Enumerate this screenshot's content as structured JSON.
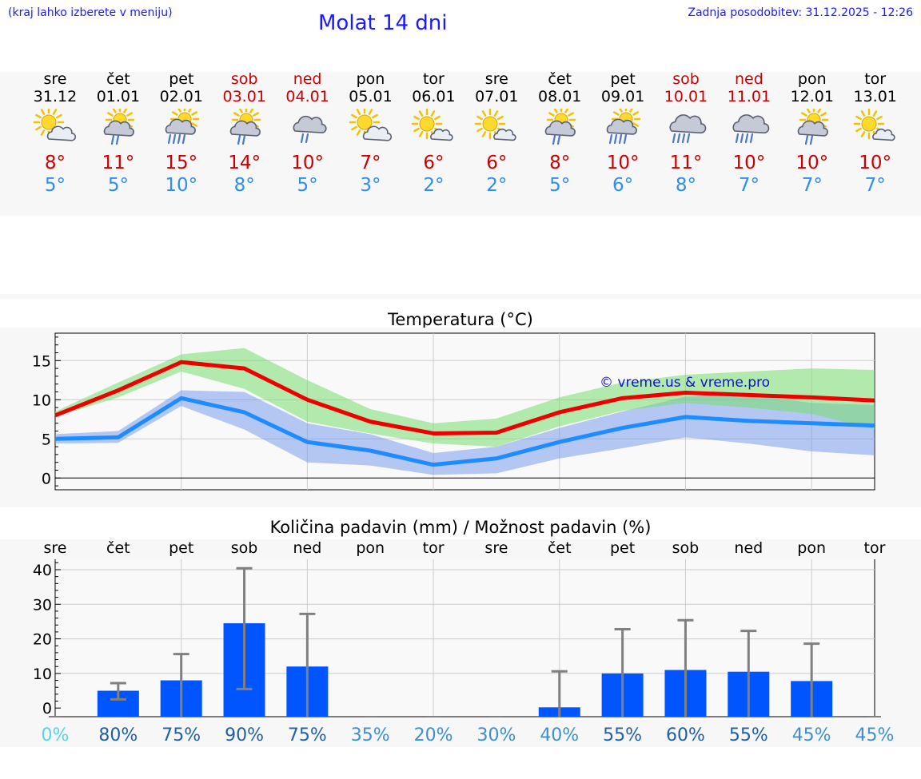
{
  "header": {
    "hint": "(kraj lahko izberete v meniju)",
    "title": "Molat 14 dni",
    "updated": "Zadnja posodobitev: 31.12.2025 - 12:26"
  },
  "colors": {
    "link": "#1a1aff",
    "max": "#cc0000",
    "min": "#2a8ff0",
    "weekend": "#cc0000",
    "bar": "#0055ff",
    "errorbar": "#808080"
  },
  "days": [
    {
      "name": "sre",
      "date": "31.12",
      "weekend": false,
      "icon": "sun-cloud-icon",
      "max": "8°",
      "min": "5°"
    },
    {
      "name": "čet",
      "date": "01.01",
      "weekend": false,
      "icon": "sun-cloud-rain-icon",
      "max": "11°",
      "min": "5°"
    },
    {
      "name": "pet",
      "date": "02.01",
      "weekend": false,
      "icon": "sun-cloud-heavy-rain-icon",
      "max": "15°",
      "min": "10°"
    },
    {
      "name": "sob",
      "date": "03.01",
      "weekend": true,
      "icon": "sun-cloud-rain-icon",
      "max": "14°",
      "min": "8°"
    },
    {
      "name": "ned",
      "date": "04.01",
      "weekend": true,
      "icon": "cloud-rain-icon",
      "max": "10°",
      "min": "5°"
    },
    {
      "name": "pon",
      "date": "05.01",
      "weekend": false,
      "icon": "sun-cloud-icon",
      "max": "7°",
      "min": "3°"
    },
    {
      "name": "tor",
      "date": "06.01",
      "weekend": false,
      "icon": "sun-small-cloud-icon",
      "max": "6°",
      "min": "2°"
    },
    {
      "name": "sre",
      "date": "07.01",
      "weekend": false,
      "icon": "sun-small-cloud-icon",
      "max": "6°",
      "min": "2°"
    },
    {
      "name": "čet",
      "date": "08.01",
      "weekend": false,
      "icon": "sun-cloud-rain-icon",
      "max": "8°",
      "min": "5°"
    },
    {
      "name": "pet",
      "date": "09.01",
      "weekend": false,
      "icon": "sun-cloud-heavy-rain-icon",
      "max": "10°",
      "min": "6°"
    },
    {
      "name": "sob",
      "date": "10.01",
      "weekend": true,
      "icon": "cloud-heavy-rain-icon",
      "max": "11°",
      "min": "8°"
    },
    {
      "name": "ned",
      "date": "11.01",
      "weekend": true,
      "icon": "cloud-heavy-rain-icon",
      "max": "10°",
      "min": "7°"
    },
    {
      "name": "pon",
      "date": "12.01",
      "weekend": false,
      "icon": "sun-cloud-rain-icon",
      "max": "10°",
      "min": "7°"
    },
    {
      "name": "tor",
      "date": "13.01",
      "weekend": false,
      "icon": "sun-small-cloud-icon",
      "max": "10°",
      "min": "7°"
    }
  ],
  "chart_data": [
    {
      "type": "line",
      "title": "Temperatura (°C)",
      "xlabel": "",
      "ylabel": "",
      "ylim": [
        -1.5,
        18.5
      ],
      "yticks": [
        0,
        5,
        10,
        15
      ],
      "watermark": "© vreme.us & vreme.pro",
      "x": [
        0,
        1,
        2,
        3,
        4,
        5,
        6,
        7,
        8,
        9,
        10,
        11,
        12,
        13
      ],
      "series": [
        {
          "name": "max",
          "color": "#ee0000",
          "values": [
            8,
            11.2,
            14.8,
            14,
            10,
            7.2,
            5.7,
            5.8,
            8.4,
            10.2,
            10.9,
            10.6,
            10.3,
            9.9
          ],
          "band_upper": [
            8.5,
            12.2,
            15.8,
            16.6,
            12.5,
            8.8,
            7.0,
            7.6,
            10.3,
            12.2,
            13.2,
            13.6,
            14.0,
            13.8
          ],
          "band_lower": [
            7.8,
            10.3,
            13.6,
            11.4,
            7.2,
            5.7,
            4.4,
            4.0,
            6.6,
            8.6,
            9.6,
            9.0,
            8.2,
            6.2
          ]
        },
        {
          "name": "min",
          "color": "#1e8cff",
          "values": [
            5,
            5.2,
            10.2,
            8.4,
            4.6,
            3.5,
            1.7,
            2.5,
            4.6,
            6.4,
            7.8,
            7.3,
            7.0,
            6.7
          ],
          "band_upper": [
            5.6,
            6.0,
            11.2,
            11.0,
            7.0,
            5.6,
            3.2,
            4.0,
            6.4,
            8.5,
            10.4,
            10.6,
            9.6,
            9.3
          ],
          "band_lower": [
            4.4,
            4.5,
            9.2,
            6.2,
            2.0,
            1.6,
            0.4,
            0.6,
            2.5,
            3.8,
            5.2,
            4.4,
            3.4,
            2.9
          ]
        }
      ]
    },
    {
      "type": "bar",
      "title": "Količina padavin (mm) / Možnost padavin (%)",
      "categories": [
        "sre",
        "čet",
        "pet",
        "sob",
        "ned",
        "pon",
        "tor",
        "sre",
        "čet",
        "pet",
        "sob",
        "ned",
        "pon",
        "tor"
      ],
      "ylim": [
        -2.5,
        43
      ],
      "yticks": [
        0,
        10,
        20,
        30,
        40
      ],
      "values": [
        0,
        5,
        8,
        24.5,
        12,
        0,
        0,
        0,
        0.2,
        10,
        11,
        10.5,
        7.8,
        0
      ],
      "error_low": [
        0,
        2.5,
        0,
        5.5,
        0,
        0,
        0,
        0,
        0,
        0,
        0,
        0,
        0,
        0
      ],
      "error_high": [
        0,
        7.2,
        15.6,
        40.4,
        27.2,
        0,
        0,
        0,
        10.6,
        22.8,
        25.4,
        22.3,
        18.6,
        0
      ],
      "probabilities": [
        "0%",
        "80%",
        "75%",
        "90%",
        "75%",
        "35%",
        "20%",
        "30%",
        "40%",
        "55%",
        "60%",
        "55%",
        "45%",
        "45%"
      ],
      "probability_colors": [
        "#55d4e8",
        "#1f5fa8",
        "#1f5fa8",
        "#1f5fa8",
        "#1f5fa8",
        "#3d8fd0",
        "#3d8fd0",
        "#3d8fd0",
        "#3d8fd0",
        "#1f5fa8",
        "#1f5fa8",
        "#1f5fa8",
        "#3d8fd0",
        "#3d8fd0"
      ]
    }
  ]
}
